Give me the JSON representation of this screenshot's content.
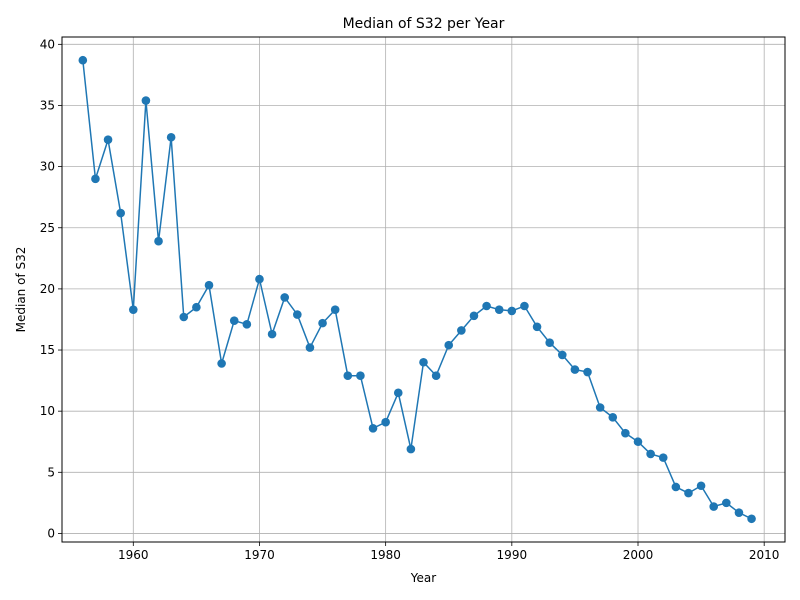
{
  "colors": {
    "series": "#1f77b4",
    "grid": "#b0b0b0",
    "axis": "#000000",
    "background": "#ffffff"
  },
  "chart_data": {
    "type": "line",
    "title": "Median of S32 per Year",
    "xlabel": "Year",
    "ylabel": "Median of S32",
    "xlim": [
      1954.35,
      2011.65
    ],
    "ylim": [
      -0.7,
      40.6
    ],
    "xticks": [
      1960,
      1970,
      1980,
      1990,
      2000,
      2010
    ],
    "yticks": [
      0,
      5,
      10,
      15,
      20,
      25,
      30,
      35,
      40
    ],
    "grid": true,
    "markers": "circle",
    "series": [
      {
        "x": [
          1956,
          1957,
          1958,
          1959,
          1960,
          1961,
          1962,
          1963,
          1964,
          1965,
          1966,
          1967,
          1968,
          1969,
          1970,
          1971,
          1972,
          1973,
          1974,
          1975,
          1976,
          1977,
          1978,
          1979,
          1980,
          1981,
          1982,
          1983,
          1984,
          1985,
          1986,
          1987,
          1988,
          1989,
          1990,
          1991,
          1992,
          1993,
          1994,
          1995,
          1996,
          1997,
          1998,
          1999,
          2000,
          2001,
          2002,
          2003,
          2004,
          2005,
          2006,
          2007,
          2008,
          2009
        ],
        "y": [
          38.7,
          29.0,
          32.2,
          26.2,
          18.3,
          35.4,
          23.9,
          32.4,
          17.7,
          18.5,
          20.3,
          13.9,
          17.4,
          17.1,
          20.8,
          16.3,
          19.3,
          17.9,
          15.2,
          17.2,
          18.3,
          12.9,
          12.9,
          8.6,
          9.1,
          11.5,
          6.9,
          14.0,
          12.9,
          15.4,
          16.6,
          17.8,
          18.6,
          18.3,
          18.2,
          18.6,
          16.9,
          15.6,
          14.6,
          13.4,
          13.2,
          10.3,
          9.5,
          8.2,
          7.5,
          6.5,
          6.2,
          3.8,
          3.3,
          3.9,
          2.2,
          2.5,
          1.7,
          1.2
        ]
      }
    ]
  }
}
